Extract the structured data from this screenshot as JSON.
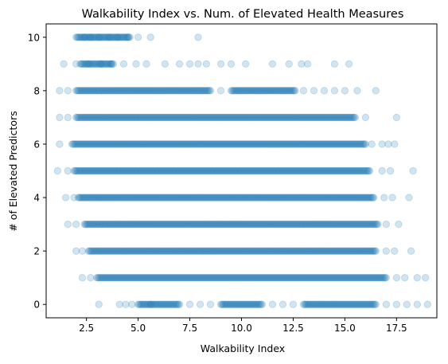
{
  "chart_data": {
    "type": "scatter",
    "title": "Walkability Index vs. Num. of Elevated Health Measures",
    "xlabel": "Walkability Index",
    "ylabel": "# of Elevated Predictors",
    "xlim": [
      0.55,
      19.45
    ],
    "ylim": [
      -0.5,
      10.5
    ],
    "xticks": [
      2.5,
      5.0,
      7.5,
      10.0,
      12.5,
      15.0,
      17.5
    ],
    "xtick_labels": [
      "2.5",
      "5.0",
      "7.5",
      "10.0",
      "12.5",
      "15.0",
      "17.5"
    ],
    "yticks": [
      0,
      2,
      4,
      6,
      8,
      10
    ],
    "ytick_labels": [
      "0",
      "2",
      "4",
      "6",
      "8",
      "10"
    ],
    "grid": false,
    "legend": false,
    "marker_color": "#1f77b4",
    "marker_alpha": 0.2,
    "series": [
      {
        "values": [
          {
            "y": 10,
            "dense": [
              [
                2.0,
                4.6
              ]
            ],
            "sparse": [
              2.4,
              2.7,
              3.1,
              3.6,
              4.0,
              4.5,
              5.0,
              5.6,
              7.9
            ]
          },
          {
            "y": 9,
            "dense": [
              [
                2.2,
                3.8
              ]
            ],
            "sparse": [
              1.4,
              2.0,
              2.6,
              3.2,
              3.7,
              4.3,
              4.9,
              5.4,
              6.3,
              7.0,
              7.5,
              7.9,
              8.3,
              9.0,
              9.5,
              10.2,
              11.5,
              12.3,
              12.9,
              13.2,
              14.5,
              15.2
            ]
          },
          {
            "y": 8,
            "dense": [
              [
                2.0,
                8.5
              ],
              [
                9.5,
                12.6
              ]
            ],
            "sparse": [
              1.2,
              1.6,
              9.0,
              13.0,
              13.5,
              14.0,
              14.5,
              15.0,
              15.6,
              16.5
            ]
          },
          {
            "y": 7,
            "dense": [
              [
                2.0,
                15.5
              ]
            ],
            "sparse": [
              1.2,
              1.6,
              16.0,
              17.5
            ]
          },
          {
            "y": 6,
            "dense": [
              [
                1.8,
                16.0
              ]
            ],
            "sparse": [
              1.2,
              16.3,
              16.8,
              17.1,
              17.4
            ]
          },
          {
            "y": 5,
            "dense": [
              [
                1.9,
                16.2
              ]
            ],
            "sparse": [
              1.1,
              1.6,
              16.8,
              17.2,
              18.3
            ]
          },
          {
            "y": 4,
            "dense": [
              [
                2.1,
                16.4
              ]
            ],
            "sparse": [
              1.5,
              1.9,
              16.9,
              17.3,
              18.1
            ]
          },
          {
            "y": 3,
            "dense": [
              [
                2.4,
                16.6
              ]
            ],
            "sparse": [
              1.6,
              2.0,
              17.0,
              17.6
            ]
          },
          {
            "y": 2,
            "dense": [
              [
                2.6,
                16.5
              ]
            ],
            "sparse": [
              2.0,
              2.3,
              17.0,
              17.4,
              18.2
            ]
          },
          {
            "y": 1,
            "dense": [
              [
                3.0,
                17.0
              ]
            ],
            "sparse": [
              2.3,
              2.7,
              17.5,
              17.9,
              18.5,
              18.9
            ]
          },
          {
            "y": 0,
            "dense": [
              [
                5.0,
                7.0
              ],
              [
                9.0,
                11.0
              ],
              [
                13.0,
                16.5
              ]
            ],
            "sparse": [
              3.1,
              4.1,
              4.4,
              4.7,
              5.6,
              7.5,
              8.0,
              8.5,
              11.5,
              12.0,
              12.5,
              17.0,
              17.5,
              18.0,
              18.5,
              19.0
            ]
          }
        ]
      }
    ]
  }
}
